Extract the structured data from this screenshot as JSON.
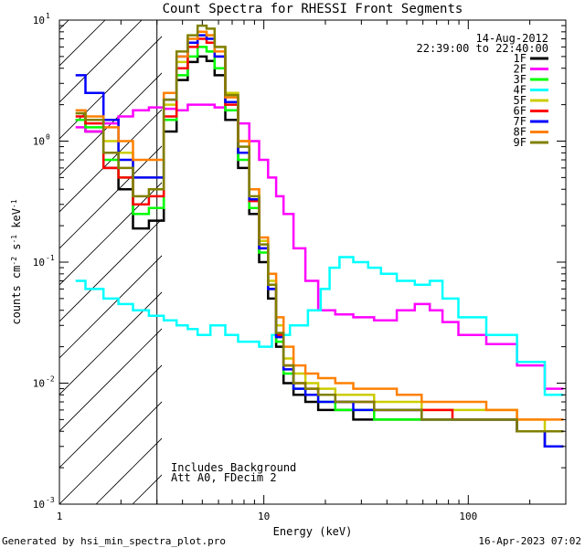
{
  "chart_data": {
    "type": "line",
    "title": "Count Spectra for RHESSI Front Segments",
    "xlabel": "Energy (keV)",
    "ylabel_parts": [
      "counts cm",
      "-2",
      " s",
      "-1",
      " keV",
      "-1"
    ],
    "x_scale": "log",
    "y_scale": "log",
    "xlim": [
      1,
      300
    ],
    "ylim": [
      0.001,
      10
    ],
    "x_ticks": [
      {
        "value": 1,
        "label": "1"
      },
      {
        "value": 10,
        "label": "10"
      },
      {
        "value": 100,
        "label": "100"
      }
    ],
    "y_ticks": [
      {
        "value": 0.001,
        "mant": "10",
        "exp": "-3"
      },
      {
        "value": 0.01,
        "mant": "10",
        "exp": "-2"
      },
      {
        "value": 0.1,
        "mant": "10",
        "exp": "-1"
      },
      {
        "value": 1,
        "mant": "10",
        "exp": "0"
      },
      {
        "value": 10,
        "mant": "10",
        "exp": "1"
      }
    ],
    "excluded_region_keV": [
      1,
      3
    ],
    "date": "14-Aug-2012",
    "time_range": "22:39:00 to 22:40:00",
    "annotations": [
      "Includes Background",
      "Att A0, FDecim 2"
    ],
    "legend_position": "top-right",
    "series": [
      {
        "name": "1F",
        "color": "#000000",
        "x": [
          1.2,
          1.5,
          1.8,
          2.1,
          2.5,
          3.0,
          3.5,
          4.0,
          4.5,
          5.0,
          5.5,
          6.0,
          7.0,
          8.0,
          9.0,
          10.0,
          11.0,
          12.0,
          13.0,
          15.0,
          17.0,
          20.0,
          25.0,
          30.0,
          40.0,
          50.0,
          70.0,
          100.0,
          150.0,
          200.0,
          280.0
        ],
        "y": [
          1.5,
          1.2,
          0.6,
          0.4,
          0.19,
          0.22,
          1.2,
          3.2,
          4.5,
          5.0,
          4.6,
          3.5,
          1.5,
          0.6,
          0.25,
          0.1,
          0.05,
          0.02,
          0.01,
          0.008,
          0.007,
          0.006,
          0.006,
          0.005,
          0.005,
          0.005,
          0.005,
          0.005,
          0.005,
          0.004,
          0.003
        ]
      },
      {
        "name": "2F",
        "color": "#ff00ff",
        "x": [
          1.2,
          1.5,
          1.8,
          2.1,
          2.5,
          3.0,
          3.5,
          4.0,
          4.5,
          5.0,
          5.5,
          6.0,
          7.0,
          8.0,
          9.0,
          10.0,
          11.0,
          12.0,
          13.0,
          15.0,
          17.0,
          20.0,
          25.0,
          30.0,
          40.0,
          50.0,
          60.0,
          70.0,
          80.0,
          100.0,
          150.0,
          200.0,
          280.0
        ],
        "y": [
          1.3,
          1.2,
          1.4,
          1.6,
          1.8,
          1.9,
          1.85,
          1.8,
          2.0,
          2.0,
          2.0,
          1.9,
          1.8,
          1.4,
          1.0,
          0.7,
          0.5,
          0.35,
          0.25,
          0.13,
          0.07,
          0.04,
          0.037,
          0.035,
          0.033,
          0.04,
          0.045,
          0.04,
          0.032,
          0.025,
          0.021,
          0.014,
          0.009
        ]
      },
      {
        "name": "3F",
        "color": "#00ff00",
        "x": [
          1.2,
          1.5,
          1.8,
          2.1,
          2.5,
          3.0,
          3.5,
          4.0,
          4.5,
          5.0,
          5.5,
          6.0,
          7.0,
          8.0,
          9.0,
          10.0,
          11.0,
          12.0,
          13.0,
          15.0,
          17.0,
          20.0,
          25.0,
          30.0,
          40.0,
          50.0,
          70.0,
          100.0,
          150.0,
          200.0,
          280.0
        ],
        "y": [
          1.5,
          1.3,
          0.7,
          0.5,
          0.25,
          0.28,
          1.5,
          3.5,
          5.0,
          6.0,
          5.5,
          4.0,
          1.8,
          0.7,
          0.28,
          0.12,
          0.06,
          0.022,
          0.012,
          0.009,
          0.008,
          0.007,
          0.006,
          0.006,
          0.005,
          0.005,
          0.005,
          0.005,
          0.005,
          0.004,
          0.004
        ]
      },
      {
        "name": "4F",
        "color": "#00ffff",
        "x": [
          1.2,
          1.5,
          1.8,
          2.1,
          2.5,
          3.0,
          3.5,
          4.0,
          4.5,
          5.0,
          6.0,
          7.0,
          8.0,
          9.0,
          10.0,
          12.0,
          15.0,
          18.0,
          20.0,
          22.0,
          25.0,
          30.0,
          35.0,
          40.0,
          50.0,
          60.0,
          70.0,
          80.0,
          100.0,
          150.0,
          200.0,
          280.0
        ],
        "y": [
          0.07,
          0.06,
          0.05,
          0.045,
          0.04,
          0.036,
          0.033,
          0.03,
          0.028,
          0.025,
          0.03,
          0.025,
          0.022,
          0.022,
          0.02,
          0.025,
          0.03,
          0.04,
          0.06,
          0.09,
          0.11,
          0.1,
          0.09,
          0.08,
          0.07,
          0.065,
          0.07,
          0.05,
          0.035,
          0.025,
          0.015,
          0.008
        ]
      },
      {
        "name": "5F",
        "color": "#cccc00",
        "x": [
          1.2,
          1.5,
          1.8,
          2.1,
          2.5,
          3.0,
          3.5,
          4.0,
          4.5,
          5.0,
          5.5,
          6.0,
          7.0,
          8.0,
          9.0,
          10.0,
          11.0,
          12.0,
          13.0,
          15.0,
          17.0,
          20.0,
          25.0,
          30.0,
          40.0,
          50.0,
          70.0,
          100.0,
          150.0,
          200.0,
          280.0
        ],
        "y": [
          1.7,
          1.5,
          1.0,
          0.8,
          0.5,
          0.5,
          2.0,
          4.5,
          6.5,
          8.0,
          7.5,
          6.0,
          2.5,
          1.0,
          0.4,
          0.15,
          0.07,
          0.03,
          0.016,
          0.012,
          0.01,
          0.009,
          0.008,
          0.008,
          0.007,
          0.007,
          0.006,
          0.006,
          0.006,
          0.005,
          0.004
        ]
      },
      {
        "name": "6F",
        "color": "#ff0000",
        "x": [
          1.2,
          1.5,
          1.8,
          2.1,
          2.5,
          3.0,
          3.5,
          4.0,
          4.5,
          5.0,
          5.5,
          6.0,
          7.0,
          8.0,
          9.0,
          10.0,
          11.0,
          12.0,
          13.0,
          15.0,
          17.0,
          20.0,
          25.0,
          30.0,
          40.0,
          50.0,
          70.0,
          100.0,
          150.0,
          200.0,
          280.0
        ],
        "y": [
          1.6,
          1.4,
          0.6,
          0.5,
          0.3,
          0.35,
          1.6,
          4.0,
          6.0,
          7.0,
          6.5,
          5.0,
          2.0,
          0.8,
          0.32,
          0.13,
          0.06,
          0.025,
          0.014,
          0.01,
          0.009,
          0.008,
          0.007,
          0.007,
          0.006,
          0.006,
          0.006,
          0.005,
          0.005,
          0.004,
          0.004
        ]
      },
      {
        "name": "7F",
        "color": "#0000ff",
        "x": [
          1.2,
          1.5,
          1.8,
          2.1,
          2.5,
          3.0,
          3.5,
          4.0,
          4.5,
          5.0,
          5.5,
          6.0,
          7.0,
          8.0,
          9.0,
          10.0,
          11.0,
          12.0,
          13.0,
          15.0,
          17.0,
          20.0,
          25.0,
          30.0,
          40.0,
          50.0,
          70.0,
          100.0,
          150.0,
          200.0,
          280.0
        ],
        "y": [
          3.5,
          2.5,
          1.5,
          0.7,
          0.5,
          0.5,
          2.2,
          5.0,
          6.5,
          7.5,
          7.0,
          5.0,
          2.1,
          0.8,
          0.33,
          0.13,
          0.06,
          0.024,
          0.013,
          0.009,
          0.008,
          0.007,
          0.007,
          0.006,
          0.006,
          0.006,
          0.005,
          0.005,
          0.005,
          0.004,
          0.003
        ]
      },
      {
        "name": "8F",
        "color": "#ff8000",
        "x": [
          1.2,
          1.5,
          1.8,
          2.1,
          2.5,
          3.0,
          3.5,
          4.0,
          4.5,
          5.0,
          5.5,
          6.0,
          7.0,
          8.0,
          9.0,
          10.0,
          11.0,
          12.0,
          13.0,
          15.0,
          17.0,
          20.0,
          25.0,
          30.0,
          40.0,
          50.0,
          70.0,
          100.0,
          150.0,
          200.0,
          280.0
        ],
        "y": [
          1.8,
          1.6,
          1.3,
          1.0,
          0.7,
          0.7,
          2.5,
          5.0,
          7.0,
          8.0,
          7.5,
          5.5,
          2.3,
          1.0,
          0.4,
          0.16,
          0.08,
          0.035,
          0.02,
          0.014,
          0.012,
          0.011,
          0.01,
          0.009,
          0.009,
          0.008,
          0.007,
          0.007,
          0.006,
          0.005,
          0.005
        ]
      },
      {
        "name": "9F",
        "color": "#808000",
        "x": [
          1.2,
          1.5,
          1.8,
          2.1,
          2.5,
          3.0,
          3.5,
          4.0,
          4.5,
          5.0,
          5.5,
          6.0,
          7.0,
          8.0,
          9.0,
          10.0,
          11.0,
          12.0,
          13.0,
          15.0,
          17.0,
          20.0,
          25.0,
          30.0,
          40.0,
          50.0,
          70.0,
          100.0,
          150.0,
          200.0,
          280.0
        ],
        "y": [
          1.7,
          1.5,
          0.8,
          0.6,
          0.35,
          0.4,
          2.2,
          5.5,
          7.5,
          9.0,
          8.5,
          6.0,
          2.4,
          0.9,
          0.35,
          0.14,
          0.065,
          0.026,
          0.014,
          0.01,
          0.009,
          0.008,
          0.007,
          0.007,
          0.006,
          0.006,
          0.005,
          0.005,
          0.005,
          0.004,
          0.004
        ]
      }
    ]
  },
  "footer": {
    "left": "Generated by hsi_min_spectra_plot.pro",
    "right": "16-Apr-2023 07:02"
  }
}
